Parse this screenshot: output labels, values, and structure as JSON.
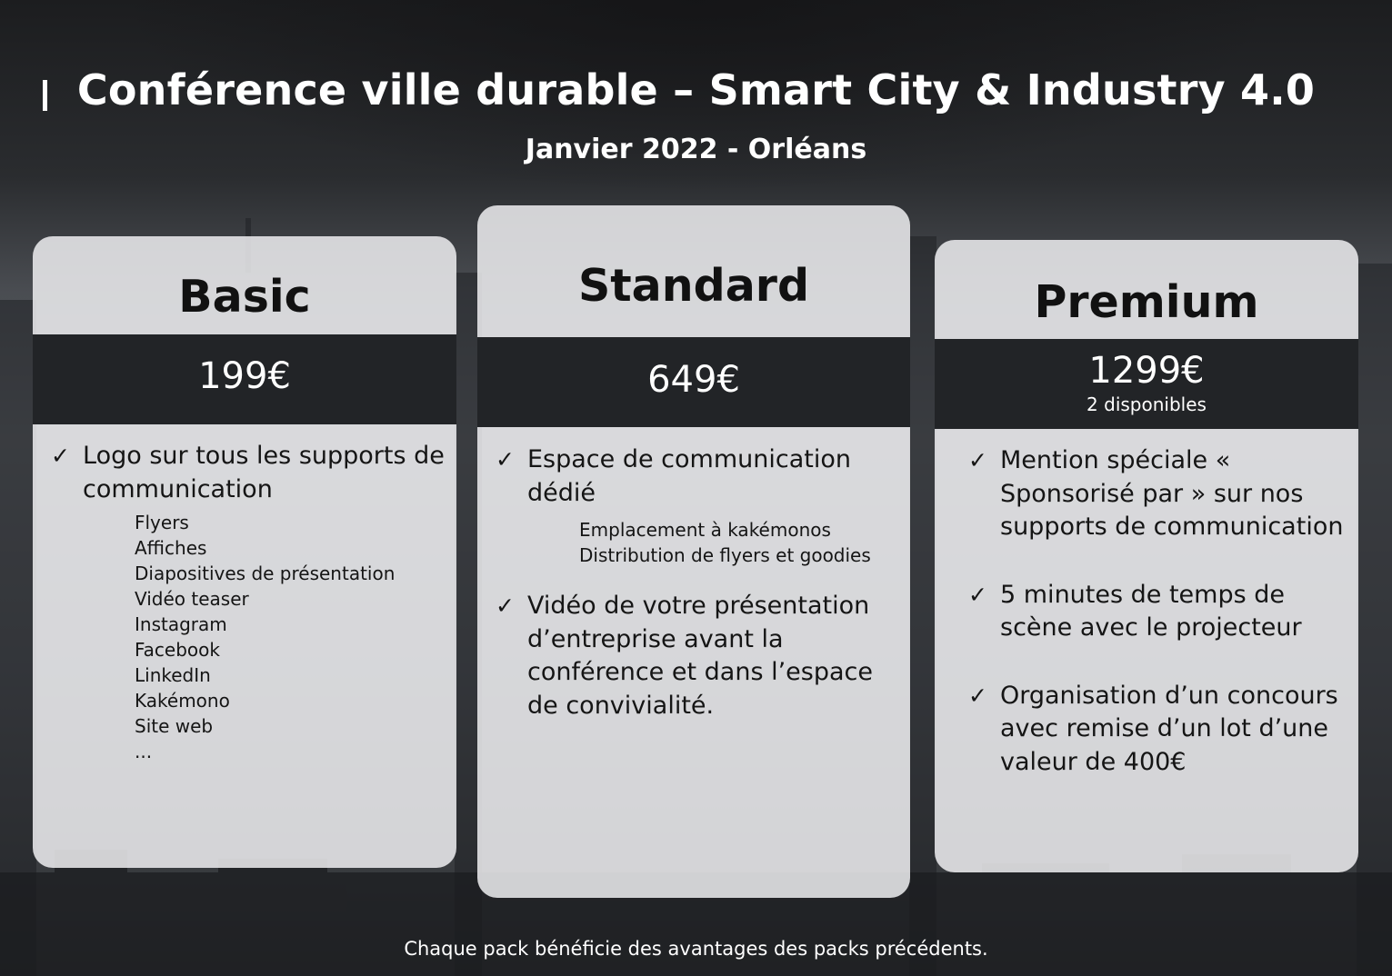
{
  "header": {
    "title": "Conférence ville durable – Smart City & Industry 4.0",
    "subtitle": "Janvier 2022 - Orléans"
  },
  "packs": [
    {
      "name": "Basic",
      "price": "199€",
      "features": [
        {
          "text": "Logo sur tous les supports de communication",
          "items": [
            "Flyers",
            "Affiches",
            "Diapositives de présentation",
            "Vidéo teaser",
            "Instagram",
            "Facebook",
            "LinkedIn",
            "Kakémono",
            "Site web",
            "..."
          ]
        }
      ]
    },
    {
      "name": "Standard",
      "price": "649€",
      "features": [
        {
          "text": "Espace de communication dédié",
          "items": [
            "Emplacement à kakémonos",
            "Distribution de flyers et goodies"
          ]
        },
        {
          "text": "Vidéo de votre présentation d’entreprise avant la conférence et dans l’espace de convivialité."
        }
      ]
    },
    {
      "name": "Premium",
      "price": "1299€",
      "availability": "2 disponibles",
      "features": [
        {
          "text": "Mention spéciale « Sponsorisé par » sur nos supports de communication"
        },
        {
          "text": "5 minutes de temps de scène avec le projecteur"
        },
        {
          "text": "Organisation d’un concours avec remise d’un lot d’une valeur de 400€"
        }
      ]
    }
  ],
  "footer": "Chaque pack bénéficie des avantages des packs précédents.",
  "icons": {
    "check": "check-icon"
  },
  "colors": {
    "card": "#eeeef0",
    "band": "#222427",
    "text": "#111111",
    "background": "#3a3c40"
  }
}
